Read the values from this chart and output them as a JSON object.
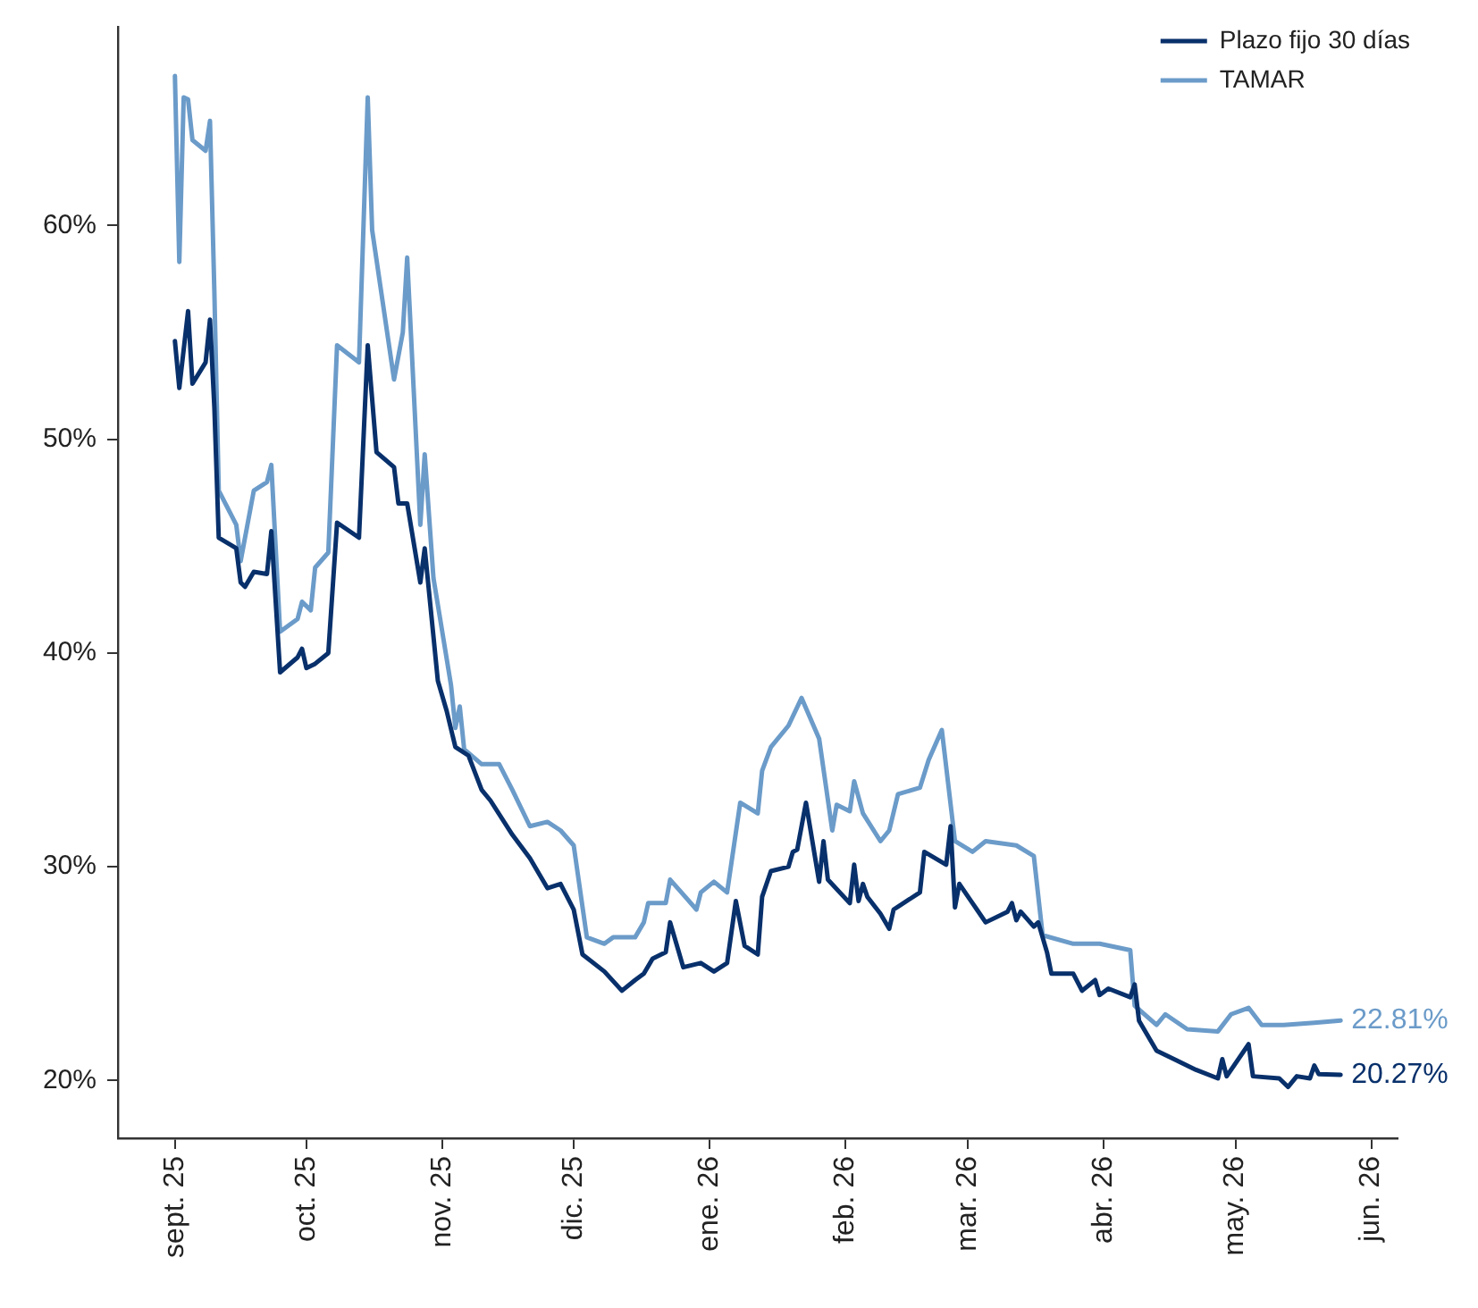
{
  "chart_data": {
    "type": "line",
    "xlim": [
      "2025-08-19",
      "2026-06-07"
    ],
    "xticks": [
      {
        "value": "2025-09-01",
        "label": "sept. 25"
      },
      {
        "value": "2025-10-01",
        "label": "oct. 25"
      },
      {
        "value": "2025-11-01",
        "label": "nov. 25"
      },
      {
        "value": "2025-12-01",
        "label": "dic. 25"
      },
      {
        "value": "2026-01-01",
        "label": "ene. 26"
      },
      {
        "value": "2026-02-01",
        "label": "feb. 26"
      },
      {
        "value": "2026-03-01",
        "label": "mar. 26"
      },
      {
        "value": "2026-04-01",
        "label": "abr. 26"
      },
      {
        "value": "2026-05-01",
        "label": "may. 26"
      },
      {
        "value": "2026-06-01",
        "label": "jun. 26"
      }
    ],
    "ylim": [
      17.3,
      69.3
    ],
    "yticks": [
      {
        "value": 20,
        "label": "20%"
      },
      {
        "value": 30,
        "label": "30%"
      },
      {
        "value": 40,
        "label": "40%"
      },
      {
        "value": 50,
        "label": "50%"
      },
      {
        "value": 60,
        "label": "60%"
      }
    ],
    "grid": false,
    "legend": "top right",
    "marker": "none",
    "line_style": "solid",
    "series": [
      {
        "name": "Plazo fijo 30 días",
        "color": "#08306b",
        "x": [
          "2025-09-01",
          "2025-09-02",
          "2025-09-04",
          "2025-09-05",
          "2025-09-08",
          "2025-09-09",
          "2025-09-10",
          "2025-09-11",
          "2025-09-15",
          "2025-09-16",
          "2025-09-17",
          "2025-09-19",
          "2025-09-22",
          "2025-09-23",
          "2025-09-25",
          "2025-09-29",
          "2025-09-30",
          "2025-10-01",
          "2025-10-03",
          "2025-10-06",
          "2025-10-08",
          "2025-10-13",
          "2025-10-15",
          "2025-10-17",
          "2025-10-21",
          "2025-10-22",
          "2025-10-24",
          "2025-10-27",
          "2025-10-28",
          "2025-10-31",
          "2025-11-02",
          "2025-11-04",
          "2025-11-07",
          "2025-11-10",
          "2025-11-12",
          "2025-11-17",
          "2025-11-21",
          "2025-11-25",
          "2025-11-28",
          "2025-12-01",
          "2025-12-03",
          "2025-12-08",
          "2025-12-12",
          "2025-12-15",
          "2025-12-17",
          "2025-12-19",
          "2025-12-22",
          "2025-12-23",
          "2025-12-26",
          "2025-12-30",
          "2026-01-02",
          "2026-01-05",
          "2026-01-07",
          "2026-01-09",
          "2026-01-12",
          "2026-01-13",
          "2026-01-15",
          "2026-01-19",
          "2026-01-20",
          "2026-01-21",
          "2026-01-23",
          "2026-01-26",
          "2026-01-27",
          "2026-01-28",
          "2026-02-02",
          "2026-02-03",
          "2026-02-04",
          "2026-02-05",
          "2026-02-06",
          "2026-02-09",
          "2026-02-11",
          "2026-02-12",
          "2026-02-18",
          "2026-02-19",
          "2026-02-24",
          "2026-02-25",
          "2026-02-26",
          "2026-02-27",
          "2026-03-02",
          "2026-03-03",
          "2026-03-05",
          "2026-03-10",
          "2026-03-11",
          "2026-03-12",
          "2026-03-13",
          "2026-03-16",
          "2026-03-17",
          "2026-03-19",
          "2026-03-20",
          "2026-03-25",
          "2026-03-27",
          "2026-03-30",
          "2026-03-31",
          "2026-04-02",
          "2026-04-07",
          "2026-04-08",
          "2026-04-09",
          "2026-04-13",
          "2026-04-17",
          "2026-04-22",
          "2026-04-27",
          "2026-04-28",
          "2026-04-29",
          "2026-05-04",
          "2026-05-05",
          "2026-05-11",
          "2026-05-13",
          "2026-05-15",
          "2026-05-18",
          "2026-05-19",
          "2026-05-20",
          "2026-05-25"
        ],
        "values": [
          54.6,
          52.4,
          56.0,
          52.6,
          53.6,
          55.6,
          51.5,
          45.4,
          44.9,
          43.3,
          43.1,
          43.8,
          43.7,
          45.7,
          39.1,
          39.8,
          40.2,
          39.3,
          39.5,
          40.0,
          46.1,
          45.4,
          54.4,
          49.4,
          48.7,
          47.0,
          47.0,
          43.3,
          44.9,
          38.7,
          37.3,
          35.6,
          35.2,
          33.6,
          33.1,
          31.5,
          30.4,
          29.0,
          29.2,
          28.0,
          25.9,
          25.1,
          24.2,
          24.7,
          25.0,
          25.7,
          26.0,
          27.4,
          25.3,
          25.5,
          25.1,
          25.5,
          28.4,
          26.3,
          25.9,
          28.6,
          29.8,
          30.0,
          30.7,
          30.8,
          33.0,
          29.3,
          31.2,
          29.4,
          28.3,
          30.1,
          28.4,
          29.2,
          28.6,
          27.8,
          27.1,
          28.0,
          28.8,
          30.7,
          30.1,
          31.9,
          28.1,
          29.2,
          28.3,
          28.0,
          27.4,
          27.9,
          28.3,
          27.5,
          27.9,
          27.2,
          27.4,
          26.0,
          25.0,
          25.0,
          24.2,
          24.7,
          24.0,
          24.3,
          23.9,
          24.5,
          22.8,
          21.4,
          21.0,
          20.5,
          20.1,
          21.0,
          20.2,
          21.7,
          20.2,
          20.1,
          19.7,
          20.2,
          20.1,
          20.7,
          20.3,
          20.27
        ],
        "value_labels": [
          null,
          null,
          null,
          null,
          null,
          null,
          null,
          null,
          null,
          null,
          null,
          null,
          null,
          null,
          null,
          null,
          null,
          null,
          null,
          null,
          null,
          null,
          null,
          null,
          null,
          null,
          null,
          null,
          null,
          null,
          null,
          null,
          null,
          null,
          null,
          null,
          null,
          null,
          null,
          null,
          null,
          null,
          null,
          null,
          null,
          null,
          null,
          null,
          null,
          null,
          null,
          null,
          null,
          null,
          null,
          null,
          null,
          null,
          null,
          null,
          null,
          null,
          null,
          null,
          null,
          null,
          null,
          null,
          null,
          null,
          null,
          null,
          null,
          null,
          null,
          null,
          null,
          null,
          null,
          null,
          null,
          null,
          null,
          null,
          null,
          null,
          null,
          null,
          null,
          null,
          null,
          null,
          null,
          null,
          null,
          null,
          null,
          null,
          null,
          null,
          null,
          null,
          null,
          null,
          null,
          null,
          null,
          null,
          null,
          null,
          null,
          "20.27%"
        ]
      },
      {
        "name": "TAMAR",
        "color": "#6b9bc9",
        "x": [
          "2025-09-01",
          "2025-09-02",
          "2025-09-03",
          "2025-09-04",
          "2025-09-05",
          "2025-09-08",
          "2025-09-09",
          "2025-09-10",
          "2025-09-11",
          "2025-09-15",
          "2025-09-16",
          "2025-09-19",
          "2025-09-22",
          "2025-09-23",
          "2025-09-25",
          "2025-09-29",
          "2025-09-30",
          "2025-10-02",
          "2025-10-03",
          "2025-10-06",
          "2025-10-08",
          "2025-10-13",
          "2025-10-15",
          "2025-10-16",
          "2025-10-21",
          "2025-10-23",
          "2025-10-24",
          "2025-10-27",
          "2025-10-28",
          "2025-10-30",
          "2025-11-03",
          "2025-11-04",
          "2025-11-05",
          "2025-11-06",
          "2025-11-10",
          "2025-11-14",
          "2025-11-17",
          "2025-11-21",
          "2025-11-25",
          "2025-11-28",
          "2025-12-01",
          "2025-12-04",
          "2025-12-08",
          "2025-12-10",
          "2025-12-15",
          "2025-12-17",
          "2025-12-18",
          "2025-12-22",
          "2025-12-23",
          "2025-12-29",
          "2025-12-30",
          "2026-01-02",
          "2026-01-05",
          "2026-01-08",
          "2026-01-12",
          "2026-01-13",
          "2026-01-15",
          "2026-01-19",
          "2026-01-22",
          "2026-01-26",
          "2026-01-29",
          "2026-01-30",
          "2026-02-02",
          "2026-02-03",
          "2026-02-05",
          "2026-02-09",
          "2026-02-11",
          "2026-02-13",
          "2026-02-18",
          "2026-02-20",
          "2026-02-23",
          "2026-02-26",
          "2026-03-02",
          "2026-03-05",
          "2026-03-12",
          "2026-03-16",
          "2026-03-18",
          "2026-03-25",
          "2026-03-31",
          "2026-04-07",
          "2026-04-08",
          "2026-04-13",
          "2026-04-15",
          "2026-04-20",
          "2026-04-27",
          "2026-04-30",
          "2026-05-04",
          "2026-05-07",
          "2026-05-12",
          "2026-05-19",
          "2026-05-25"
        ],
        "values": [
          67.0,
          58.3,
          66.0,
          65.9,
          64.0,
          63.5,
          64.9,
          56.9,
          47.6,
          46.0,
          44.3,
          47.6,
          48.0,
          48.8,
          41.0,
          41.6,
          42.4,
          42.0,
          44.0,
          44.7,
          54.4,
          53.6,
          66.0,
          59.8,
          52.8,
          55.0,
          58.5,
          46.0,
          49.3,
          43.5,
          38.5,
          36.5,
          37.5,
          35.5,
          34.8,
          34.8,
          33.6,
          31.9,
          32.1,
          31.7,
          31.0,
          26.7,
          26.4,
          26.7,
          26.7,
          27.4,
          28.3,
          28.3,
          29.4,
          28.0,
          28.8,
          29.3,
          28.8,
          33.0,
          32.5,
          34.5,
          35.6,
          36.6,
          37.9,
          36.0,
          31.7,
          32.9,
          32.6,
          34.0,
          32.5,
          31.2,
          31.7,
          33.4,
          33.7,
          35.0,
          36.4,
          31.2,
          30.7,
          31.2,
          31.0,
          30.5,
          26.8,
          26.4,
          26.4,
          26.1,
          23.5,
          22.6,
          23.1,
          22.4,
          22.3,
          23.1,
          23.4,
          22.6,
          22.6,
          22.7,
          22.81
        ],
        "value_labels": [
          null,
          null,
          null,
          null,
          null,
          null,
          null,
          null,
          null,
          null,
          null,
          null,
          null,
          null,
          null,
          null,
          null,
          null,
          null,
          null,
          null,
          null,
          null,
          null,
          null,
          null,
          null,
          null,
          null,
          null,
          null,
          null,
          null,
          null,
          null,
          null,
          null,
          null,
          null,
          null,
          null,
          null,
          null,
          null,
          null,
          null,
          null,
          null,
          null,
          null,
          null,
          null,
          null,
          null,
          null,
          null,
          null,
          null,
          null,
          null,
          null,
          null,
          null,
          null,
          null,
          null,
          null,
          null,
          null,
          null,
          null,
          null,
          null,
          null,
          null,
          null,
          null,
          null,
          null,
          null,
          null,
          null,
          null,
          null,
          null,
          null,
          null,
          null,
          null,
          null,
          "22.81%"
        ]
      }
    ]
  }
}
